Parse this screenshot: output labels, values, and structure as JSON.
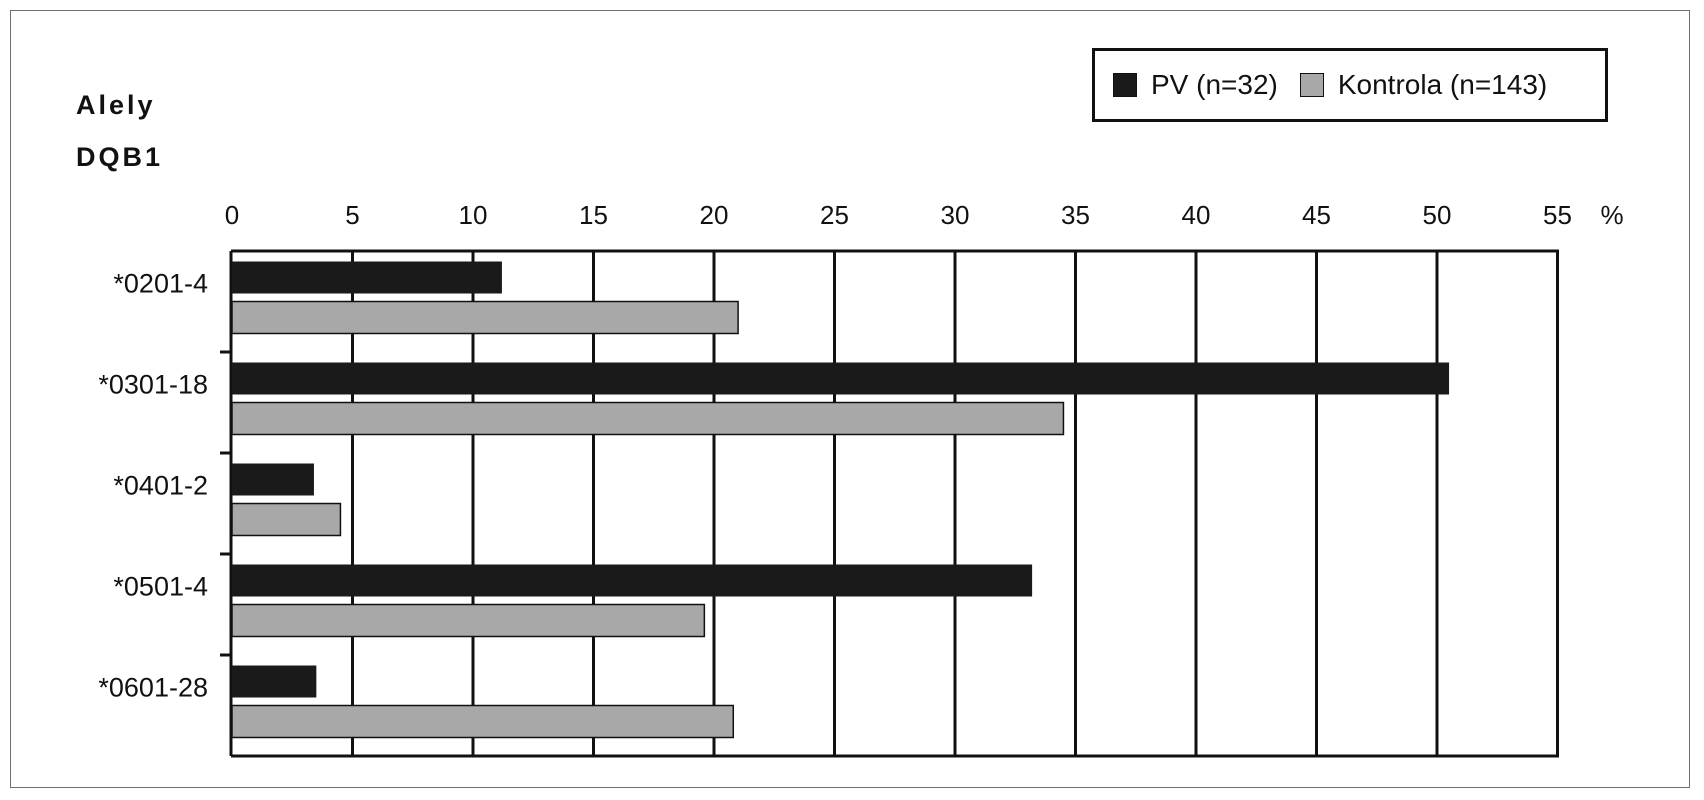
{
  "chart_data": {
    "type": "bar",
    "orientation": "horizontal",
    "categories_title_line1": "Alely",
    "categories_title_line2": "DQB1",
    "categories": [
      "*0201-4",
      "*0301-18",
      "*0401-2",
      "*0501-4",
      "*0601-28"
    ],
    "series": [
      {
        "name": "PV (n=32)",
        "values": [
          11.2,
          50.5,
          3.4,
          33.2,
          3.5
        ]
      },
      {
        "name": "Kontrola (n=143)",
        "values": [
          21.0,
          34.5,
          4.5,
          19.6,
          20.8
        ]
      }
    ],
    "x_ticks": [
      0,
      5,
      10,
      15,
      20,
      25,
      30,
      35,
      40,
      45,
      50,
      55
    ],
    "x_tick_labels": [
      "0",
      "5",
      "10",
      "15",
      "20",
      "25",
      "30",
      "35",
      "40",
      "45",
      "50",
      "55"
    ],
    "x_unit": "%",
    "xlim": [
      0,
      55
    ],
    "grid": true,
    "legend_position": "top-right",
    "colors": {
      "PV (n=32)": "#1a1a1a",
      "Kontrola (n=143)": "#a8a8a8"
    }
  }
}
